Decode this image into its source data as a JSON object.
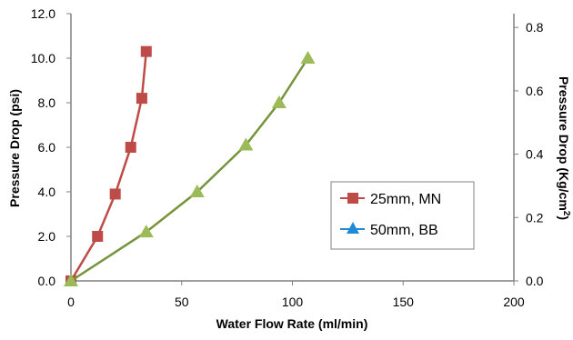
{
  "chart_data": {
    "type": "line",
    "title": "",
    "xlabel": "Water Flow Rate (ml/min)",
    "ylabel": "Pressure Drop  (psi)",
    "y2label_main": "Pressure Drop (Kg/cm",
    "y2label_sup": "2",
    "y2label_end": ")",
    "xlim": [
      0,
      200
    ],
    "ylim": [
      0,
      12
    ],
    "y2lim": [
      0,
      0.8436
    ],
    "xticks": [
      "0",
      "50",
      "100",
      "150",
      "200"
    ],
    "yticks": [
      "0.0",
      "2.0",
      "4.0",
      "6.0",
      "8.0",
      "10.0",
      "12.0"
    ],
    "y2ticks": [
      "0.0",
      "0.2",
      "0.4",
      "0.6",
      "0.8"
    ],
    "grid": false,
    "legend_position": "center-right",
    "series": [
      {
        "name": "25mm, MN",
        "color": "#be4b48",
        "line_color": "#be4b48",
        "marker": "square",
        "x": [
          0,
          12,
          20,
          27,
          32,
          34
        ],
        "y": [
          0.0,
          2.0,
          3.9,
          6.0,
          8.2,
          10.3
        ]
      },
      {
        "name": "50mm, BB",
        "color": "#9bbb59",
        "line_color": "#77933c",
        "marker": "triangle",
        "legend_color": "#1f8ad6",
        "x": [
          0,
          34,
          57,
          79,
          94,
          107
        ],
        "y": [
          0.0,
          2.2,
          4.0,
          6.1,
          8.0,
          10.0
        ]
      }
    ]
  }
}
